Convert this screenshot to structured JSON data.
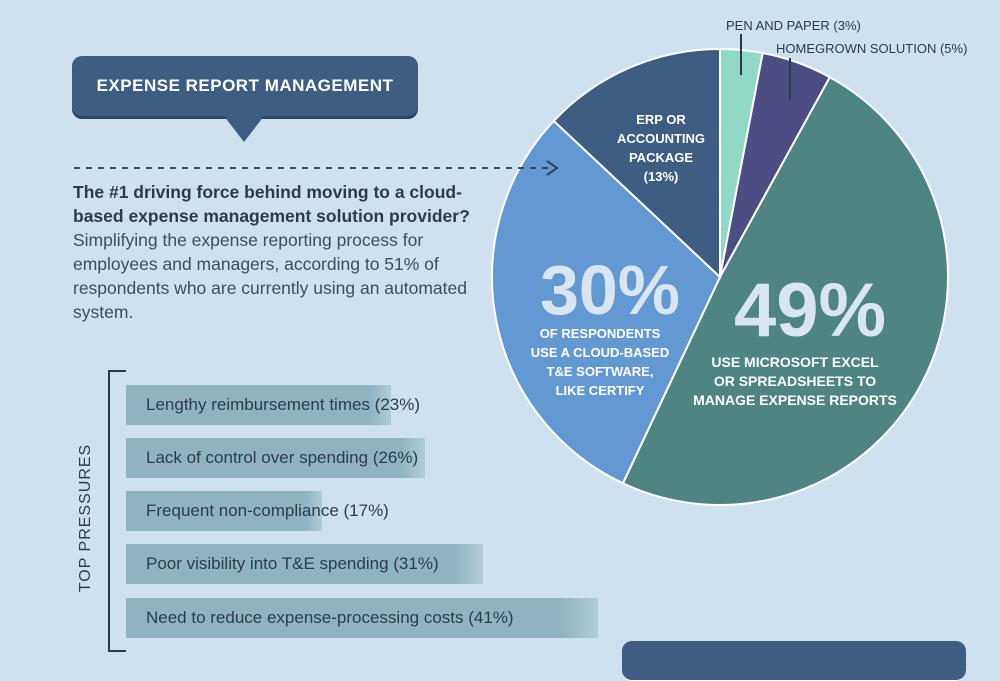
{
  "section": {
    "title": "EXPENSE REPORT MANAGEMENT"
  },
  "intro": {
    "lead": "The #1 driving force behind moving to a cloud-based expense management solution provider?",
    "rest": "Simplifying the expense reporting process for employees and managers, according to 51% of respondents who are currently using an automated system."
  },
  "colors": {
    "background": "#cfe0ef",
    "badge": "#3d5d82",
    "excel": "#4e8583",
    "cloud": "#6399d3",
    "erp": "#3d5d82",
    "homegrown": "#4c4e83",
    "pen": "#8fd9c6",
    "bar": "#8fb4c0"
  },
  "chart_data": [
    {
      "type": "pie",
      "title": "",
      "slices": [
        {
          "key": "pen",
          "label": "PEN AND PAPER (3%)",
          "value": 3,
          "color": "#8fd9c6"
        },
        {
          "key": "homegrown",
          "label": "HOMEGROWN SOLUTION (5%)",
          "value": 5,
          "color": "#4c4e83"
        },
        {
          "key": "excel",
          "big": "49%",
          "label_lines": [
            "USE MICROSOFT EXCEL",
            "OR SPREADSHEETS TO",
            "MANAGE EXPENSE REPORTS"
          ],
          "value": 49,
          "color": "#4e8583"
        },
        {
          "key": "cloud",
          "big": "30%",
          "label_lines": [
            "OF RESPONDENTS",
            "USE A CLOUD-BASED",
            "T&E SOFTWARE,",
            "LIKE CERTIFY"
          ],
          "value": 30,
          "color": "#6399d3"
        },
        {
          "key": "erp",
          "label_lines": [
            "ERP OR",
            "ACCOUNTING",
            "PACKAGE",
            "(13%)"
          ],
          "value": 13,
          "color": "#3d5d82"
        }
      ]
    },
    {
      "type": "bar",
      "orientation": "horizontal",
      "title": "TOP PRESSURES",
      "categories": [
        "Lengthy reimbursement times (23%)",
        "Lack of control over spending (26%)",
        "Frequent non-compliance (17%)",
        "Poor visibility into T&E spending (31%)",
        "Need to reduce expense-processing costs (41%)"
      ],
      "values": [
        23,
        26,
        17,
        31,
        41
      ],
      "xlim": [
        0,
        41
      ]
    }
  ]
}
